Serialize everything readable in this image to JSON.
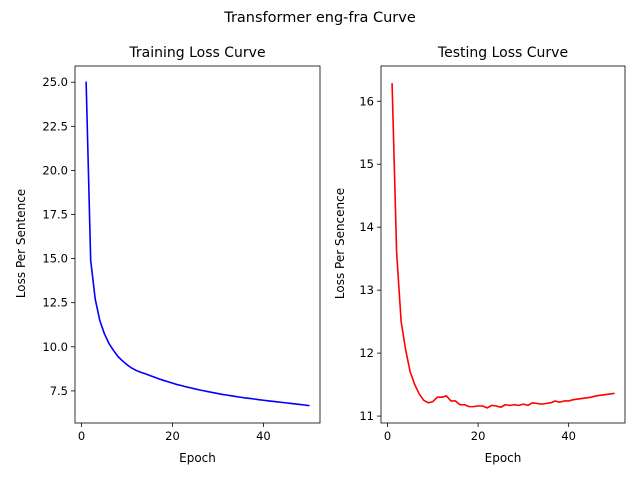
{
  "figure": {
    "suptitle": "Transformer eng-fra Curve"
  },
  "chart_data": [
    {
      "type": "line",
      "title": "Training Loss Curve",
      "xlabel": "Epoch",
      "ylabel": "Loss Per Sentence",
      "xlim": [
        -1.45,
        52.45
      ],
      "ylim": [
        5.68,
        25.92
      ],
      "xticks": [
        0,
        20,
        40
      ],
      "xtick_labels": [
        "0",
        "20",
        "40"
      ],
      "yticks": [
        7.5,
        10.0,
        12.5,
        15.0,
        17.5,
        20.0,
        22.5,
        25.0
      ],
      "ytick_labels": [
        "7.5",
        "10.0",
        "12.5",
        "15.0",
        "17.5",
        "20.0",
        "22.5",
        "25.0"
      ],
      "grid": false,
      "series": [
        {
          "color": "#0000ff",
          "x": [
            1,
            2,
            3,
            4,
            5,
            6,
            7,
            8,
            9,
            10,
            11,
            12,
            13,
            14,
            15,
            16,
            17,
            18,
            19,
            20,
            21,
            22,
            23,
            24,
            25,
            26,
            27,
            28,
            29,
            30,
            31,
            32,
            33,
            34,
            35,
            36,
            37,
            38,
            39,
            40,
            41,
            42,
            43,
            44,
            45,
            46,
            47,
            48,
            49,
            50
          ],
          "y": [
            25.0,
            14.9,
            12.7,
            11.5,
            10.75,
            10.2,
            9.8,
            9.45,
            9.2,
            8.98,
            8.8,
            8.66,
            8.56,
            8.47,
            8.37,
            8.28,
            8.18,
            8.1,
            8.02,
            7.94,
            7.86,
            7.8,
            7.73,
            7.67,
            7.61,
            7.55,
            7.5,
            7.45,
            7.4,
            7.35,
            7.3,
            7.26,
            7.22,
            7.18,
            7.14,
            7.1,
            7.07,
            7.04,
            7.0,
            6.97,
            6.94,
            6.91,
            6.88,
            6.85,
            6.82,
            6.79,
            6.76,
            6.73,
            6.7,
            6.67
          ]
        }
      ]
    },
    {
      "type": "line",
      "title": "Testing Loss Curve",
      "xlabel": "Epoch",
      "ylabel": "Loss Per Sencence",
      "xlim": [
        -1.45,
        52.45
      ],
      "ylim": [
        10.89,
        16.56
      ],
      "xticks": [
        0,
        20,
        40
      ],
      "xtick_labels": [
        "0",
        "20",
        "40"
      ],
      "yticks": [
        11,
        12,
        13,
        14,
        15,
        16
      ],
      "ytick_labels": [
        "11",
        "12",
        "13",
        "14",
        "15",
        "16"
      ],
      "grid": false,
      "series": [
        {
          "color": "#ff0000",
          "x": [
            1,
            2,
            3,
            4,
            5,
            6,
            7,
            8,
            9,
            10,
            11,
            12,
            13,
            14,
            15,
            16,
            17,
            18,
            19,
            20,
            21,
            22,
            23,
            24,
            25,
            26,
            27,
            28,
            29,
            30,
            31,
            32,
            33,
            34,
            35,
            36,
            37,
            38,
            39,
            40,
            41,
            42,
            43,
            44,
            45,
            46,
            47,
            48,
            49,
            50
          ],
          "y": [
            16.28,
            13.6,
            12.5,
            12.05,
            11.7,
            11.5,
            11.35,
            11.25,
            11.21,
            11.23,
            11.3,
            11.3,
            11.32,
            11.24,
            11.24,
            11.18,
            11.18,
            11.15,
            11.15,
            11.16,
            11.16,
            11.13,
            11.17,
            11.16,
            11.14,
            11.18,
            11.17,
            11.18,
            11.17,
            11.19,
            11.17,
            11.21,
            11.2,
            11.19,
            11.2,
            11.21,
            11.24,
            11.22,
            11.24,
            11.24,
            11.26,
            11.27,
            11.28,
            11.29,
            11.3,
            11.32,
            11.33,
            11.34,
            11.35,
            11.36
          ]
        }
      ]
    }
  ]
}
